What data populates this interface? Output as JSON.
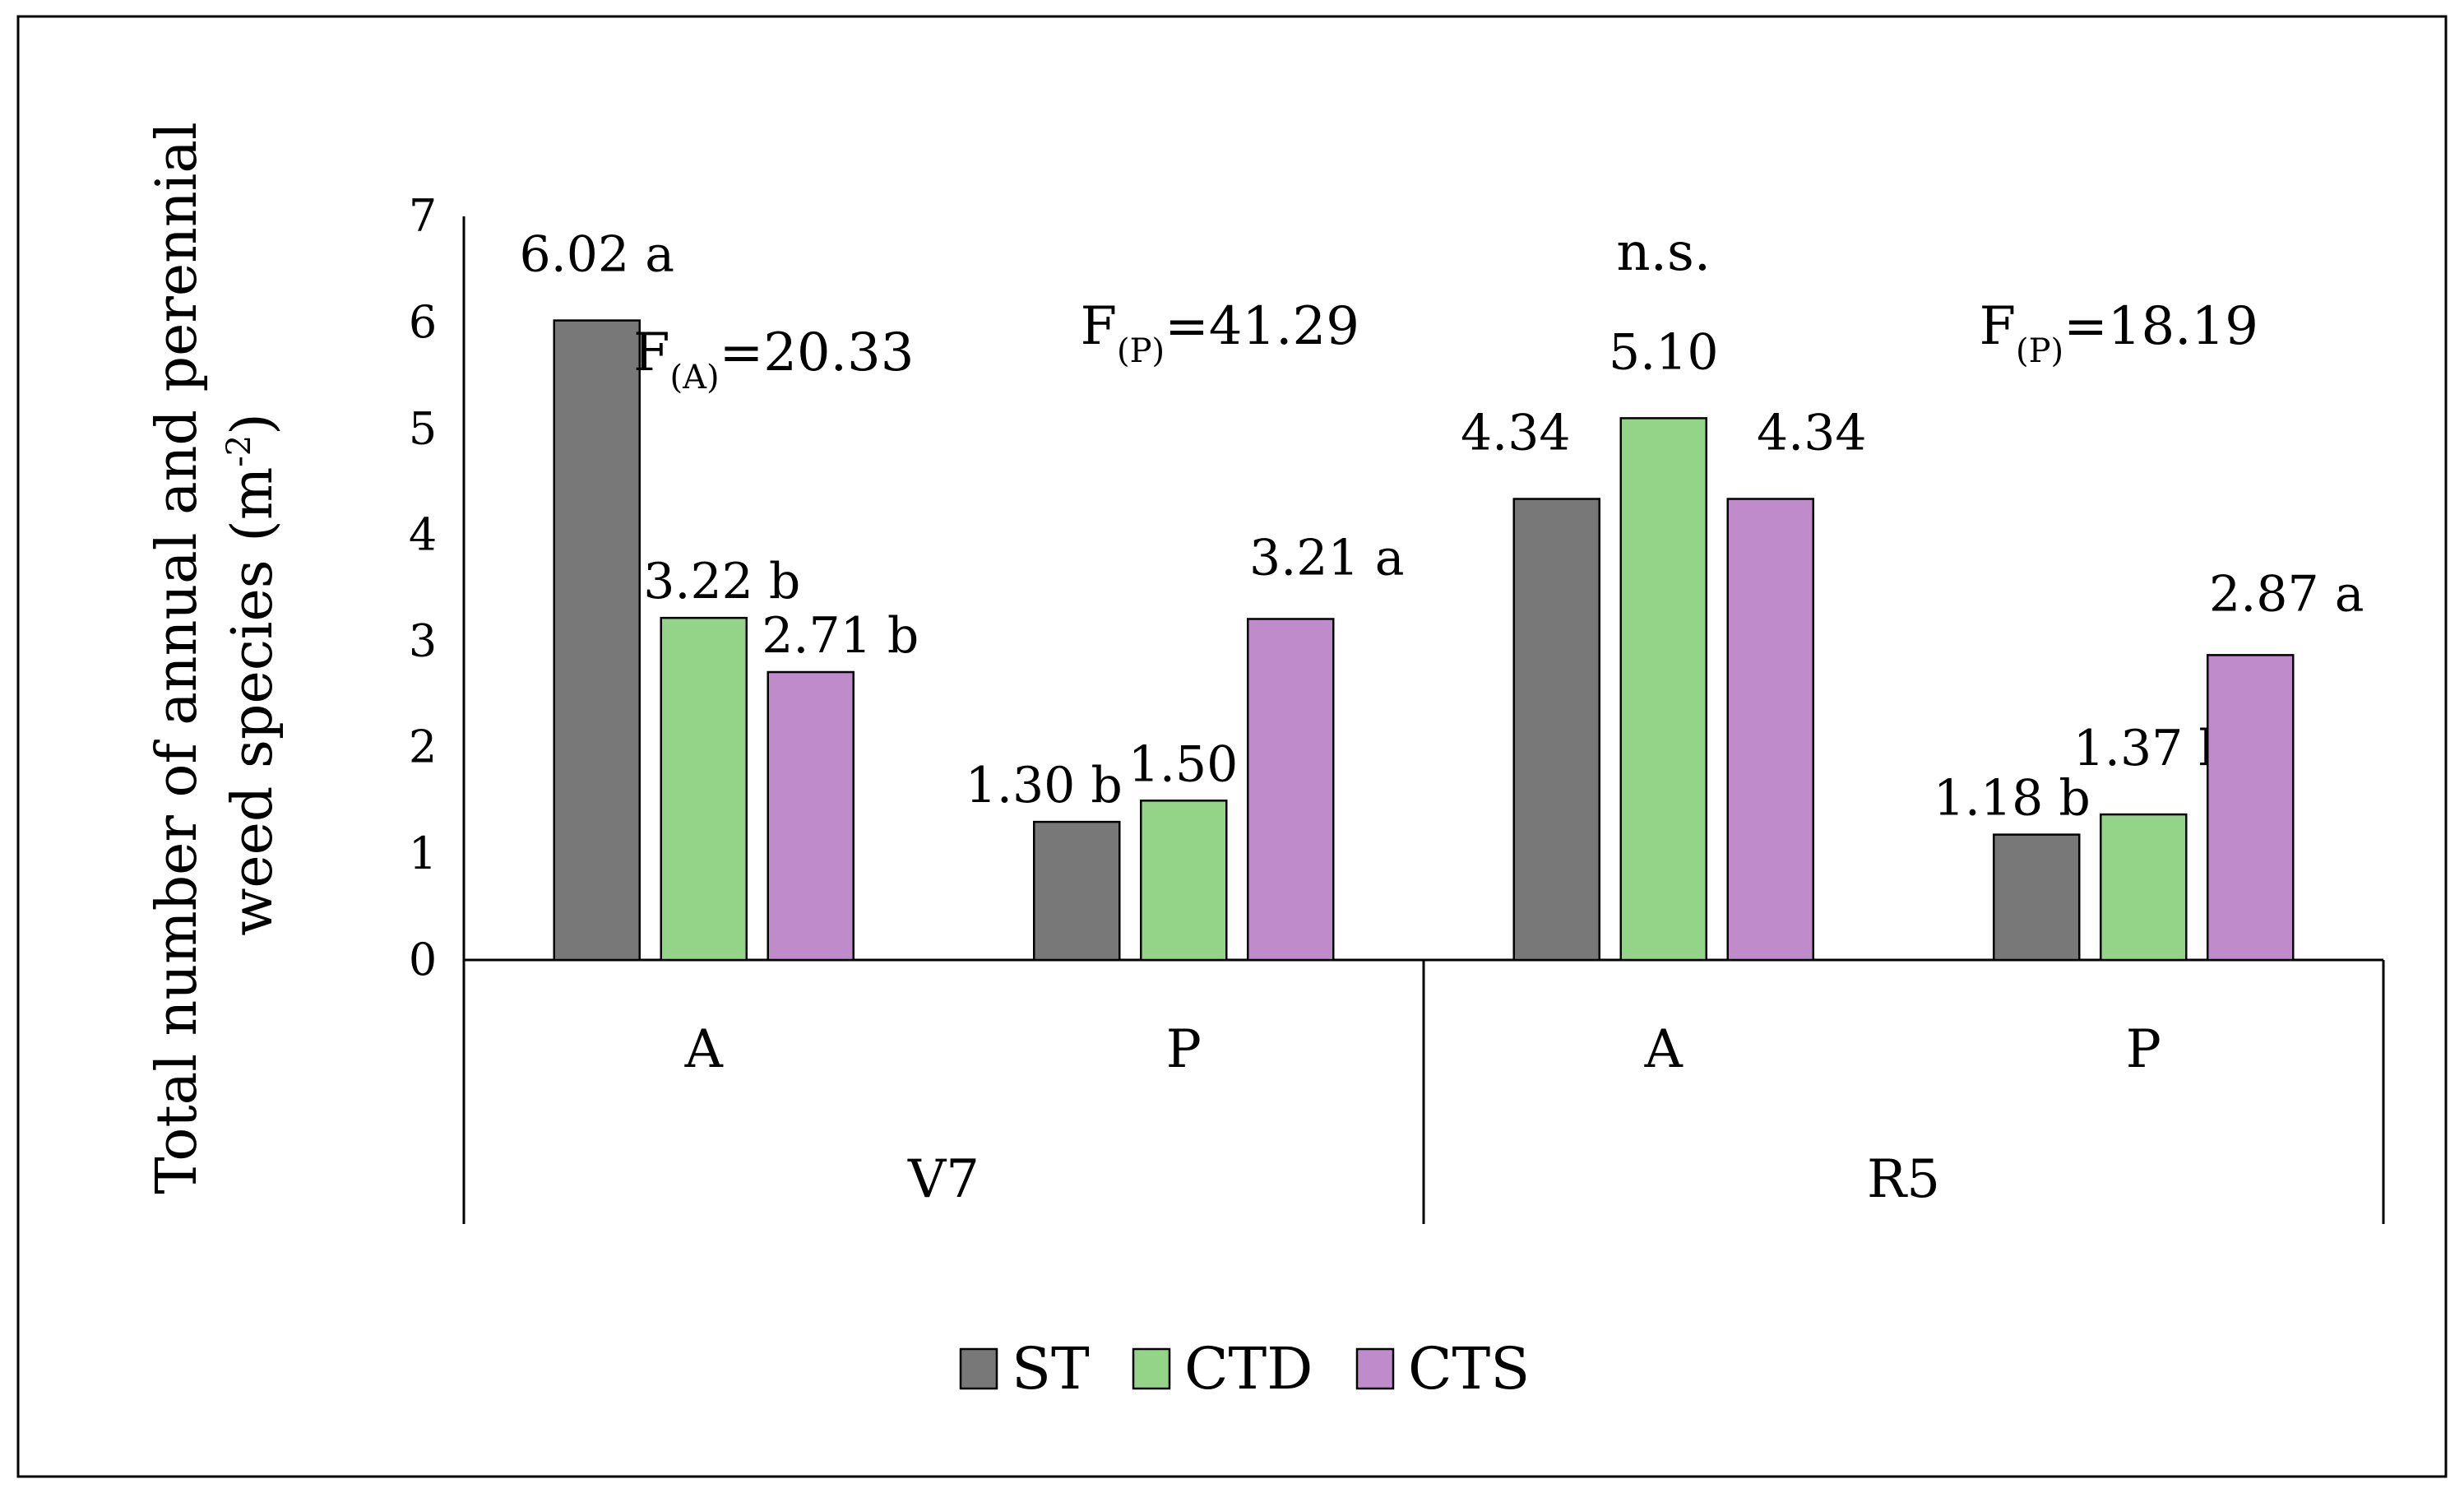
{
  "chart_data": {
    "type": "bar",
    "ylabel": "Total number of annual and perennial weed species (m",
    "ylabel_sup": "-2",
    "ylabel_tail": ")",
    "ylim": [
      0,
      7
    ],
    "yticks": [
      "0",
      "1",
      "2",
      "3",
      "4",
      "5",
      "6",
      "7"
    ],
    "groups": [
      {
        "label": "V7",
        "categories": [
          {
            "label": "A",
            "values": [
              6.02,
              3.22,
              2.71
            ],
            "labels": [
              "6.02 a",
              "3.22 b",
              "2.71 b"
            ]
          },
          {
            "label": "P",
            "values": [
              1.3,
              1.5,
              3.21
            ],
            "labels": [
              "1.30 b",
              "1.50 b",
              "3.21 a"
            ]
          }
        ]
      },
      {
        "label": "R5",
        "categories": [
          {
            "label": "A",
            "values": [
              4.34,
              5.1,
              4.34
            ],
            "labels": [
              "4.34",
              "5.10",
              "4.34"
            ]
          },
          {
            "label": "P",
            "values": [
              1.18,
              1.37,
              2.87
            ],
            "labels": [
              "1.18 b",
              "1.37 b",
              "2.87 a"
            ]
          }
        ]
      }
    ],
    "series": [
      {
        "name": "ST",
        "color": "#787878"
      },
      {
        "name": "CTD",
        "color": "#93d488"
      },
      {
        "name": "CTS",
        "color": "#bf8bcb"
      }
    ],
    "annotations": [
      {
        "group": 0,
        "cat": 0,
        "prefix": "F",
        "sub": "(A)",
        "suffix": "=20.33"
      },
      {
        "group": 0,
        "cat": 1,
        "prefix": "F",
        "sub": "(P)",
        "suffix": "=41.29"
      },
      {
        "group": 1,
        "cat": 0,
        "text": "n.s."
      },
      {
        "group": 1,
        "cat": 1,
        "prefix": "F",
        "sub": "(P)",
        "suffix": "=18.19"
      }
    ],
    "legend_position": "bottom",
    "grid": false
  }
}
